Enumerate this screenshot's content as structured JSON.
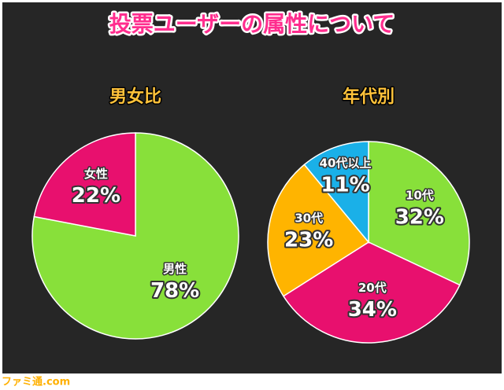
{
  "title": "投票ユーザーの属性について",
  "watermark": "ファミ通.com",
  "chart_data": [
    {
      "type": "pie",
      "title": "男女比",
      "categories": [
        "男性",
        "女性"
      ],
      "values": [
        78,
        22
      ],
      "value_labels": [
        "78%",
        "22%"
      ],
      "colors": [
        "#88e03a",
        "#e8106e"
      ]
    },
    {
      "type": "pie",
      "title": "年代別",
      "categories": [
        "10代",
        "20代",
        "30代",
        "40代以上"
      ],
      "values": [
        32,
        34,
        23,
        11
      ],
      "value_labels": [
        "32%",
        "34%",
        "23%",
        "11%"
      ],
      "colors": [
        "#88e03a",
        "#e8106e",
        "#ffb400",
        "#1ab0e8"
      ]
    }
  ]
}
